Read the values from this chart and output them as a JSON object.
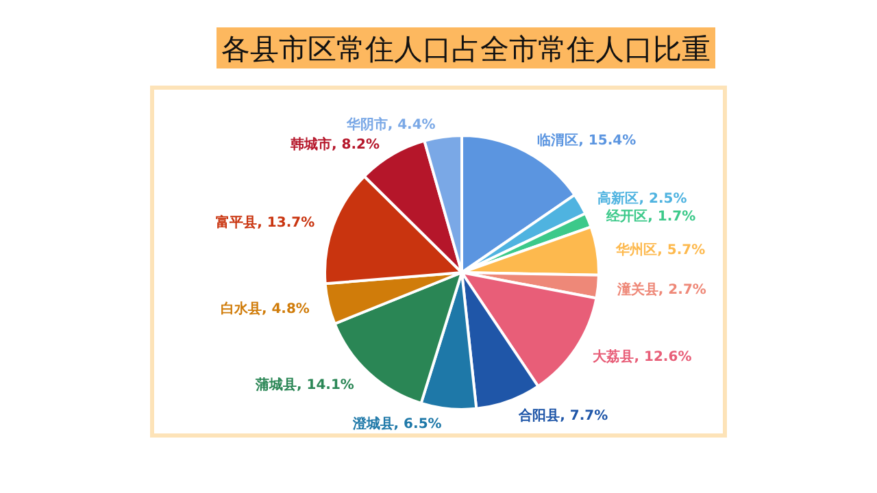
{
  "chart_data": {
    "type": "pie",
    "title": "各县市区常住人口占全市常住人口比重",
    "categories": [
      "临渭区",
      "高新区",
      "经开区",
      "华州区",
      "潼关县",
      "大荔县",
      "合阳县",
      "澄城县",
      "蒲城县",
      "白水县",
      "富平县",
      "韩城市",
      "华阴市"
    ],
    "values": [
      15.4,
      2.5,
      1.7,
      5.7,
      2.7,
      12.6,
      7.7,
      6.5,
      14.1,
      4.8,
      13.7,
      8.2,
      4.4
    ],
    "value_labels": [
      "15.4%",
      "2.5%",
      "1.7%",
      "5.7%",
      "2.7%",
      "12.6%",
      "7.7%",
      "6.5%",
      "14.1%",
      "4.8%",
      "13.7%",
      "8.2%",
      "4.4%"
    ],
    "colors": [
      "#5b95e0",
      "#4fb3e0",
      "#3cc98a",
      "#fdb94e",
      "#ee8878",
      "#e85e78",
      "#1f56a8",
      "#1e78a8",
      "#2a8655",
      "#d07c0a",
      "#c9340f",
      "#b5162a",
      "#7aa8e6"
    ]
  }
}
